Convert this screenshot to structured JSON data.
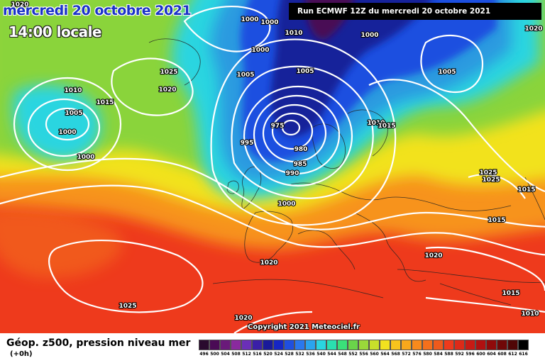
{
  "header": {
    "date": "mercredi 20 octobre 2021",
    "time": "14:00 locale",
    "run": "Run ECMWF 12Z du mercredi 20 octobre 2021"
  },
  "map": {
    "isobars": [
      {
        "value": "1020",
        "lx": 0
      },
      {
        "value": "1000"
      },
      {
        "value": "1000"
      },
      {
        "value": "1000"
      },
      {
        "value": "1010"
      },
      {
        "value": "1000"
      },
      {
        "value": "1005"
      },
      {
        "value": "1005"
      },
      {
        "value": "1005"
      },
      {
        "value": "1025"
      },
      {
        "value": "1020"
      },
      {
        "value": "1010"
      },
      {
        "value": "1015"
      },
      {
        "value": "1005"
      },
      {
        "value": "1000"
      },
      {
        "value": "1000"
      },
      {
        "value": "975"
      },
      {
        "value": "995"
      },
      {
        "value": "980"
      },
      {
        "value": "985"
      },
      {
        "value": "990"
      },
      {
        "value": "1010"
      },
      {
        "value": "1015"
      },
      {
        "value": "1000"
      },
      {
        "value": "1025"
      },
      {
        "value": "1025"
      },
      {
        "value": "1015"
      },
      {
        "value": "1015"
      },
      {
        "value": "1020"
      },
      {
        "value": "1020"
      },
      {
        "value": "1025"
      },
      {
        "value": "1015"
      },
      {
        "value": "1010"
      },
      {
        "value": "1020"
      },
      {
        "value": "1020"
      }
    ],
    "colors": {
      "red": "#ee3a1c",
      "orange": "#f7931c",
      "yellow": "#f2e21f",
      "green": "#8ad43b",
      "cyan": "#2ad5e0",
      "blue": "#1f4fe0",
      "navy": "#15239a"
    }
  },
  "copyright": "Copyright 2021 Meteociel.fr",
  "legend": {
    "title": "Géop. z500, pression niveau mer",
    "subtitle": "(+0h)",
    "scale": [
      {
        "label": "496",
        "color": "#2a0a2e"
      },
      {
        "label": "500",
        "color": "#4a0a55"
      },
      {
        "label": "504",
        "color": "#6a1a7a"
      },
      {
        "label": "508",
        "color": "#8a2a9e"
      },
      {
        "label": "512",
        "color": "#6b2fb8"
      },
      {
        "label": "516",
        "color": "#3a1fa8"
      },
      {
        "label": "520",
        "color": "#1a1a9a"
      },
      {
        "label": "524",
        "color": "#1626c4"
      },
      {
        "label": "528",
        "color": "#1f4fe0"
      },
      {
        "label": "532",
        "color": "#2a78ee"
      },
      {
        "label": "536",
        "color": "#2aa4ee"
      },
      {
        "label": "540",
        "color": "#2ad5e0"
      },
      {
        "label": "544",
        "color": "#2ae0b0"
      },
      {
        "label": "548",
        "color": "#3ae07a"
      },
      {
        "label": "552",
        "color": "#6ad44a"
      },
      {
        "label": "556",
        "color": "#9ad83a"
      },
      {
        "label": "560",
        "color": "#c8e02a"
      },
      {
        "label": "564",
        "color": "#f2e21f"
      },
      {
        "label": "568",
        "color": "#f7c41c"
      },
      {
        "label": "572",
        "color": "#f7a81c"
      },
      {
        "label": "576",
        "color": "#f78a1c"
      },
      {
        "label": "580",
        "color": "#f4701c"
      },
      {
        "label": "584",
        "color": "#ee5a1c"
      },
      {
        "label": "588",
        "color": "#ee3a1c"
      },
      {
        "label": "592",
        "color": "#dd2a18"
      },
      {
        "label": "596",
        "color": "#c81a14"
      },
      {
        "label": "600",
        "color": "#b01010"
      },
      {
        "label": "604",
        "color": "#900a0a"
      },
      {
        "label": "608",
        "color": "#700808"
      },
      {
        "label": "612",
        "color": "#500606"
      },
      {
        "label": "616",
        "color": "#000000"
      }
    ]
  }
}
